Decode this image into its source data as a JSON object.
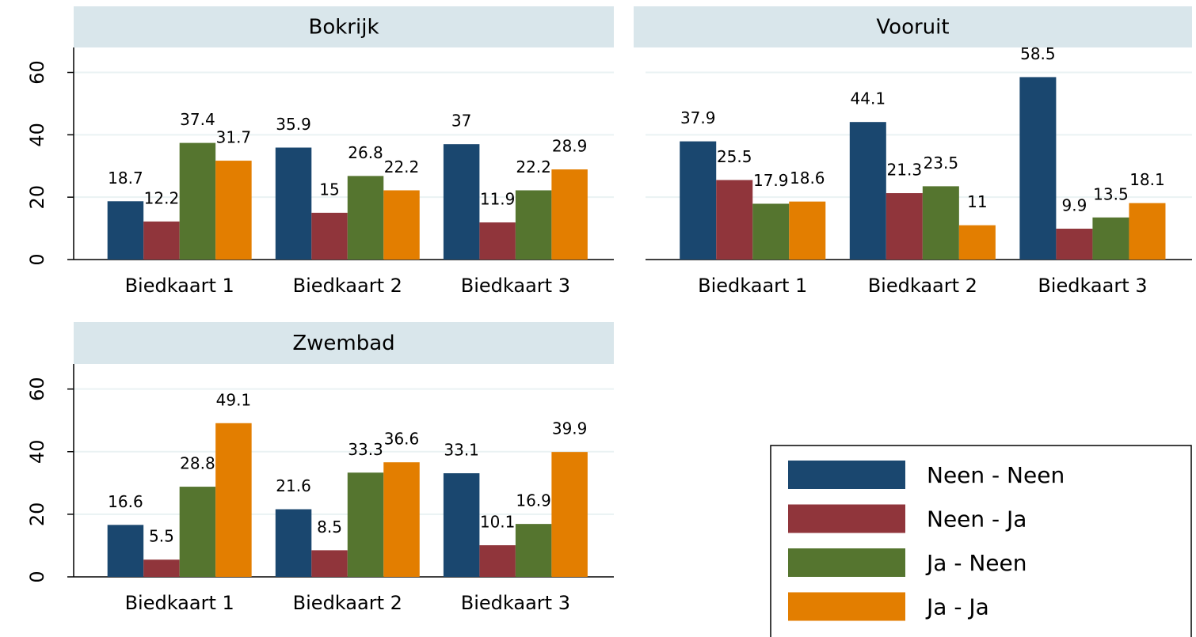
{
  "chart_data": {
    "type": "bar",
    "categories": [
      "Biedkaart 1",
      "Biedkaart 2",
      "Biedkaart 3"
    ],
    "series": [
      {
        "name": "Neen - Neen",
        "color": "#1a476f"
      },
      {
        "name": "Neen - Ja",
        "color": "#90353b"
      },
      {
        "name": "Ja - Neen",
        "color": "#55752f"
      },
      {
        "name": "Ja - Ja",
        "color": "#e37e00"
      }
    ],
    "ylim": [
      0,
      68
    ],
    "yticks": [
      0,
      20,
      40,
      60
    ],
    "grid": true,
    "panels": [
      {
        "title": "Bokrijk",
        "values": [
          [
            18.7,
            35.9,
            37
          ],
          [
            12.2,
            15,
            11.9
          ],
          [
            37.4,
            26.8,
            22.2
          ],
          [
            31.7,
            22.2,
            28.9
          ]
        ]
      },
      {
        "title": "Vooruit",
        "values": [
          [
            37.9,
            44.1,
            58.5
          ],
          [
            25.5,
            21.3,
            9.9
          ],
          [
            17.9,
            23.5,
            13.5
          ],
          [
            18.6,
            11,
            18.1
          ]
        ]
      },
      {
        "title": "Zwembad",
        "values": [
          [
            16.6,
            21.6,
            33.1
          ],
          [
            5.5,
            8.5,
            10.1
          ],
          [
            28.8,
            33.3,
            16.9
          ],
          [
            49.1,
            36.6,
            39.9
          ]
        ]
      }
    ]
  }
}
